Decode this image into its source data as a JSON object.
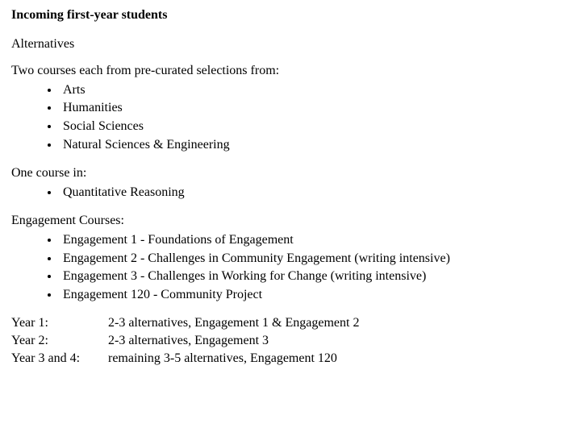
{
  "heading": "Incoming first-year students",
  "alternativesLabel": "Alternatives",
  "twoCoursesIntro": "Two courses each from pre-curated selections from:",
  "twoCoursesList": [
    "Arts",
    "Humanities",
    "Social Sciences",
    "Natural Sciences & Engineering"
  ],
  "oneCourseIntro": "One course in:",
  "oneCourseList": [
    "Quantitative Reasoning"
  ],
  "engagementIntro": "Engagement Courses:",
  "engagementList": [
    "Engagement 1 - Foundations of Engagement",
    "Engagement 2 - Challenges in Community Engagement (writing intensive)",
    "Engagement 3 - Challenges in Working for Change (writing intensive)",
    "Engagement 120 - Community Project"
  ],
  "schedule": [
    {
      "label": "Year 1:",
      "desc": "2-3 alternatives, Engagement 1 & Engagement 2"
    },
    {
      "label": "Year 2:",
      "desc": "2-3 alternatives, Engagement 3"
    },
    {
      "label": "Year 3 and 4:",
      "desc": "remaining 3-5 alternatives, Engagement 120"
    }
  ]
}
